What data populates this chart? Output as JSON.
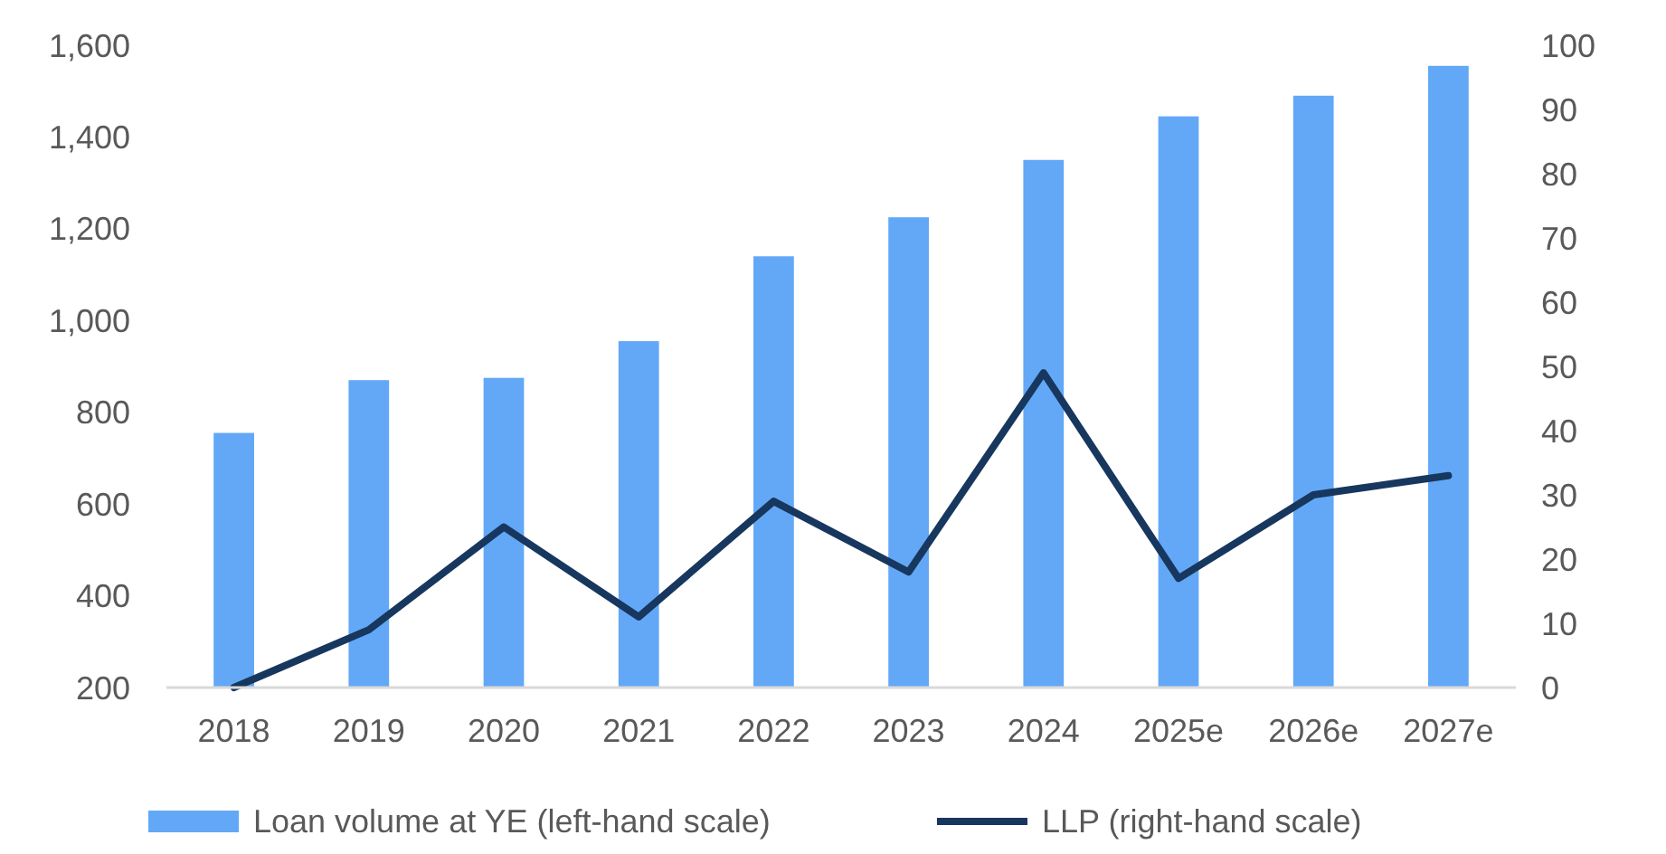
{
  "chart_data": {
    "type": "bar",
    "categories": [
      "2018",
      "2019",
      "2020",
      "2021",
      "2022",
      "2023",
      "2024",
      "2025e",
      "2026e",
      "2027e"
    ],
    "series": [
      {
        "name": "Loan volume at YE (left-hand scale)",
        "color": "#62a8f7",
        "values": [
          755,
          870,
          875,
          955,
          1140,
          1225,
          1350,
          1445,
          1490,
          1555
        ]
      },
      {
        "name": "LLP (right-hand scale)",
        "type": "line",
        "axis": "y2",
        "color": "#17375e",
        "values": [
          0,
          9,
          25,
          11,
          29,
          18,
          49,
          17,
          30,
          33
        ]
      }
    ],
    "ylim": [
      200,
      1600
    ],
    "yticks": [
      {
        "value": 200,
        "label": "200"
      },
      {
        "value": 400,
        "label": "400"
      },
      {
        "value": 600,
        "label": "600"
      },
      {
        "value": 800,
        "label": "800"
      },
      {
        "value": 1000,
        "label": "1,000"
      },
      {
        "value": 1200,
        "label": "1,200"
      },
      {
        "value": 1400,
        "label": "1,400"
      },
      {
        "value": 1600,
        "label": "1,600"
      }
    ],
    "y2lim": [
      0,
      100
    ],
    "y2ticks": [
      0,
      10,
      20,
      30,
      40,
      50,
      60,
      70,
      80,
      90,
      100
    ],
    "grid": false,
    "legend": "bottom",
    "marker": "none",
    "line_style": "solid"
  }
}
